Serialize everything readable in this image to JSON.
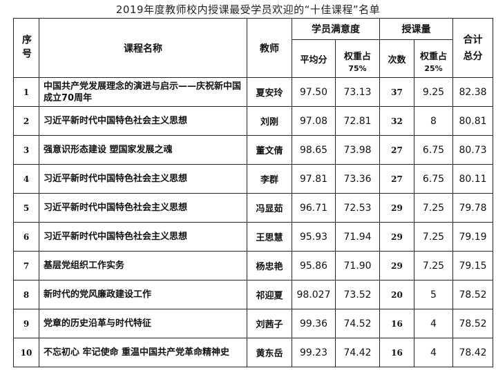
{
  "title": "2019年度教师校内授课最受学员欢迎的“十佳课程”名单",
  "headers": {
    "no": "序号",
    "course": "课程名称",
    "teacher": "教师",
    "satisfaction": "学员满意度",
    "avg": "平均分",
    "weight1": "权重占",
    "weight1_pct": "75%",
    "load": "授课量",
    "times": "次数",
    "weight2": "权重占",
    "weight2_pct": "25%",
    "total": "合计总分"
  },
  "rows": [
    {
      "no": "1",
      "course": "中国共产党发展理念的演进与启示——庆祝新中国成立70周年",
      "teacher": "夏安玲",
      "avg": "97.50",
      "w1": "73.13",
      "times": "37",
      "w2": "9.25",
      "total": "82.38"
    },
    {
      "no": "2",
      "course": "习近平新时代中国特色社会主义思想",
      "teacher": "刘刚",
      "avg": "97.08",
      "w1": "72.81",
      "times": "32",
      "w2": "8",
      "total": "80.81"
    },
    {
      "no": "3",
      "course": "强意识形态建设 塑国家发展之魂",
      "teacher": "董文倩",
      "avg": "98.65",
      "w1": "73.98",
      "times": "27",
      "w2": "6.75",
      "total": "80.73"
    },
    {
      "no": "4",
      "course": "习近平新时代中国特色社会主义思想",
      "teacher": "李群",
      "avg": "97.81",
      "w1": "73.36",
      "times": "27",
      "w2": "6.75",
      "total": "80.11"
    },
    {
      "no": "5",
      "course": "习近平新时代中国特色社会主义思想",
      "teacher": "冯显茹",
      "avg": "96.71",
      "w1": "72.53",
      "times": "29",
      "w2": "7.25",
      "total": "79.78"
    },
    {
      "no": "6",
      "course": "习近平新时代中国特色社会主义思想",
      "teacher": "王思慧",
      "avg": "95.93",
      "w1": "71.94",
      "times": "29",
      "w2": "7.25",
      "total": "79.19"
    },
    {
      "no": "7",
      "course": "基层党组织工作实务",
      "teacher": "杨忠艳",
      "avg": "95.86",
      "w1": "71.90",
      "times": "29",
      "w2": "7.25",
      "total": "79.15"
    },
    {
      "no": "8",
      "course": "新时代的党风廉政建设工作",
      "teacher": "祁迎夏",
      "avg": "98.027",
      "w1": "73.52",
      "times": "20",
      "w2": "5",
      "total": "78.52"
    },
    {
      "no": "9",
      "course": "党章的历史沿革与时代特征",
      "teacher": "刘茜子",
      "avg": "99.36",
      "w1": "74.52",
      "times": "16",
      "w2": "4",
      "total": "78.52"
    },
    {
      "no": "10",
      "course": "不忘初心 牢记使命 重温中国共产党革命精神史",
      "teacher": "黄东岳",
      "avg": "99.23",
      "w1": "74.42",
      "times": "16",
      "w2": "4",
      "total": "78.42"
    }
  ]
}
